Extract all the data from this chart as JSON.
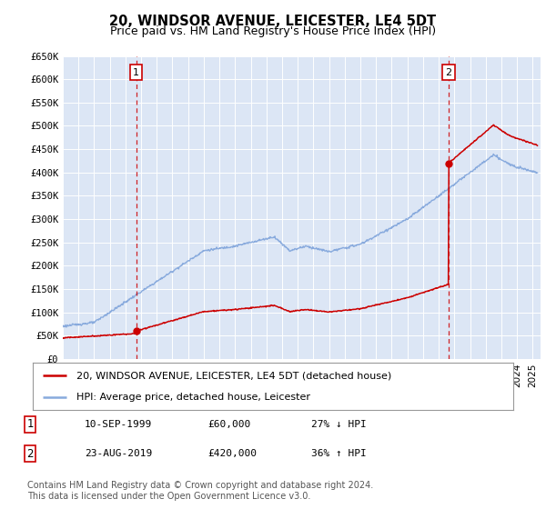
{
  "title": "20, WINDSOR AVENUE, LEICESTER, LE4 5DT",
  "subtitle": "Price paid vs. HM Land Registry's House Price Index (HPI)",
  "ylim": [
    0,
    650000
  ],
  "yticks": [
    0,
    50000,
    100000,
    150000,
    200000,
    250000,
    300000,
    350000,
    400000,
    450000,
    500000,
    550000,
    600000,
    650000
  ],
  "ytick_labels": [
    "£0",
    "£50K",
    "£100K",
    "£150K",
    "£200K",
    "£250K",
    "£300K",
    "£350K",
    "£400K",
    "£450K",
    "£500K",
    "£550K",
    "£600K",
    "£650K"
  ],
  "xlim_start": 1995.0,
  "xlim_end": 2025.5,
  "sale1_year": 1999.69,
  "sale1_price": 60000,
  "sale1_label": "1",
  "sale1_date": "10-SEP-1999",
  "sale1_hpi_pct": "27% ↓ HPI",
  "sale2_year": 2019.64,
  "sale2_price": 420000,
  "sale2_label": "2",
  "sale2_date": "23-AUG-2019",
  "sale2_hpi_pct": "36% ↑ HPI",
  "line_color_price": "#cc0000",
  "line_color_hpi": "#88aadd",
  "dashed_color": "#cc0000",
  "background_color": "#dce6f5",
  "legend_label_price": "20, WINDSOR AVENUE, LEICESTER, LE4 5DT (detached house)",
  "legend_label_hpi": "HPI: Average price, detached house, Leicester",
  "footer": "Contains HM Land Registry data © Crown copyright and database right 2024.\nThis data is licensed under the Open Government Licence v3.0.",
  "title_fontsize": 10.5,
  "subtitle_fontsize": 9,
  "tick_fontsize": 7.5,
  "legend_fontsize": 8,
  "annotation_fontsize": 8,
  "footer_fontsize": 7
}
